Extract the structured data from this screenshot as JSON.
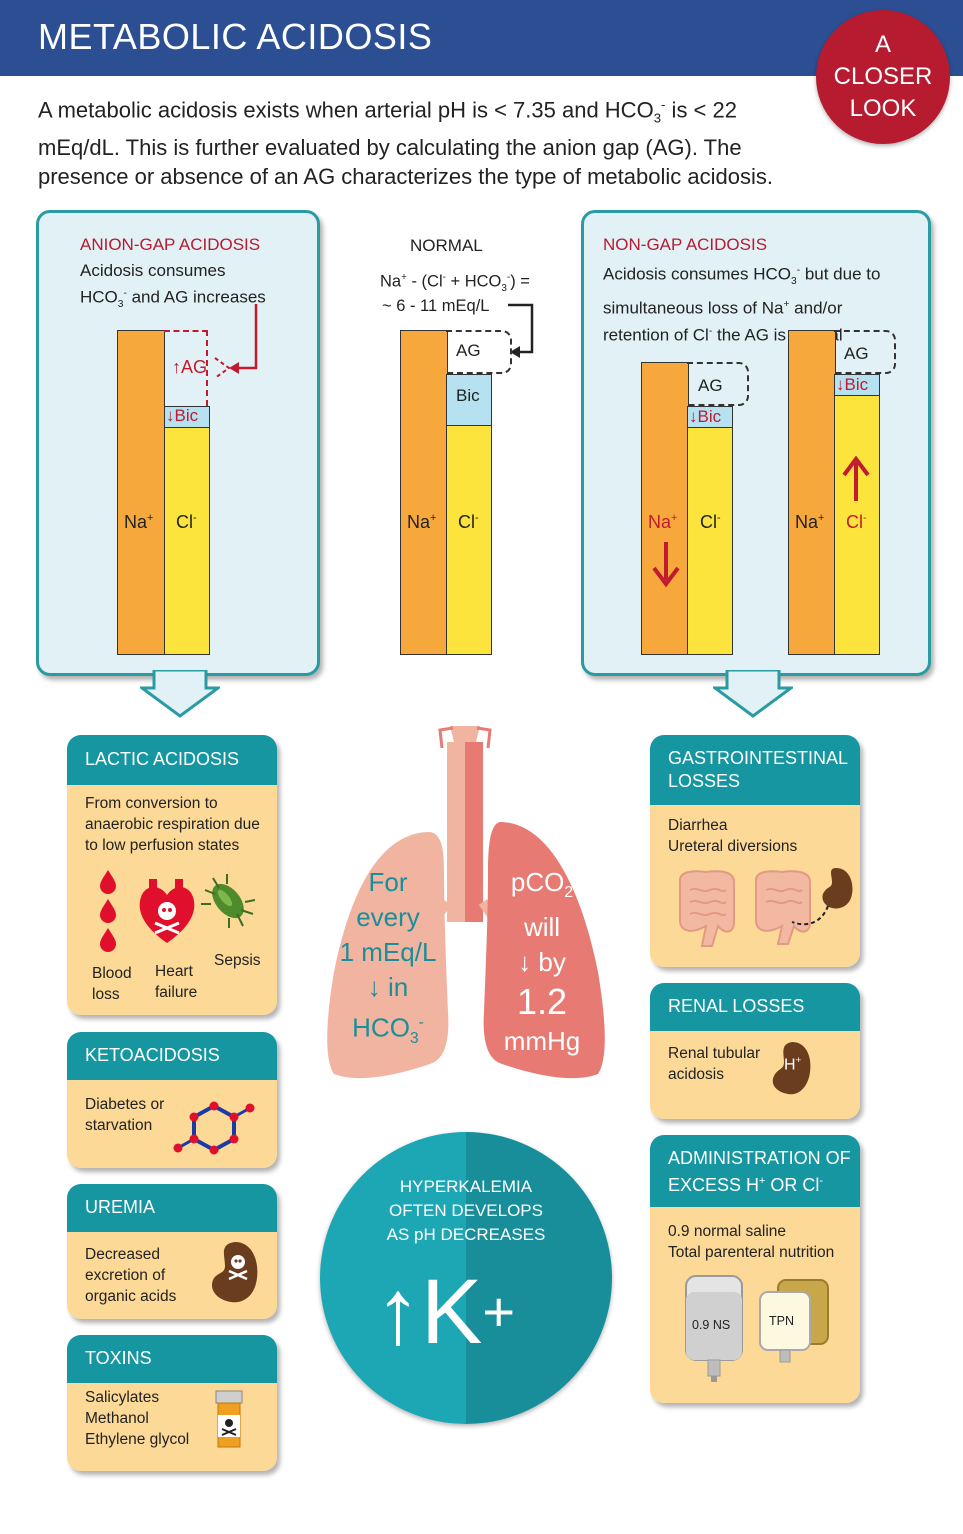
{
  "header": {
    "title": "METABOLIC ACIDOSIS",
    "badge": [
      "A",
      "CLOSER",
      "LOOK"
    ]
  },
  "intro": {
    "part1": "A metabolic acidosis exists when arterial pH is < 7.35 and HCO",
    "sub3": "3",
    "sup_minus": "-",
    "part2": " is < 22 mEq/dL. This is further evaluated by calculating the anion gap (AG). The presence or absence of an AG characterizes the type of metabolic acidosis."
  },
  "anion_gap": {
    "title": "ANION-GAP ACIDOSIS",
    "desc1": "Acidosis consumes",
    "desc2a": "HCO",
    "desc2b": " and AG increases",
    "ag": "↑AG",
    "bic": "↓Bic",
    "na": "Na",
    "cl": "Cl"
  },
  "normal": {
    "title": "NORMAL",
    "formula1a": "Na",
    "formula1b": " - (Cl",
    "formula1c": " + HCO",
    "formula1d": ") =",
    "formula2": "~ 6 - 11 mEq/L",
    "ag": "AG",
    "bic": "Bic",
    "na": "Na",
    "cl": "Cl"
  },
  "non_gap": {
    "title": "NON-GAP ACIDOSIS",
    "desc1a": "Acidosis consumes HCO",
    "desc1b": " but due to",
    "desc2a": "simultaneous loss of Na",
    "desc2b": " and/or",
    "desc3a": "retention of Cl",
    "desc3b": " the AG is normal",
    "ag": "AG",
    "bic": "↓Bic",
    "na": "Na",
    "cl": "Cl"
  },
  "cards_left": {
    "lactic": {
      "title": "LACTIC ACIDOSIS",
      "text": [
        "From conversion to",
        "anaerobic respiration due",
        "to low perfusion states"
      ],
      "blood": [
        "Blood",
        "loss"
      ],
      "heart": [
        "Heart",
        "failure"
      ],
      "sepsis": "Sepsis"
    },
    "keto": {
      "title": "KETOACIDOSIS",
      "text": [
        "Diabetes or",
        "starvation"
      ]
    },
    "uremia": {
      "title": "UREMIA",
      "text": [
        "Decreased",
        "excretion of",
        "organic acids"
      ]
    },
    "toxins": {
      "title": "TOXINS",
      "text": [
        "Salicylates",
        "Methanol",
        "Ethylene glycol"
      ]
    }
  },
  "cards_right": {
    "gi": {
      "title": [
        "GASTROINTESTINAL",
        "LOSSES"
      ],
      "text": [
        "Diarrhea",
        "Ureteral diversions"
      ]
    },
    "renal": {
      "title": "RENAL LOSSES",
      "text": [
        "Renal tubular",
        "acidosis"
      ],
      "hplus": "H"
    },
    "admin": {
      "title1": "ADMINISTRATION OF",
      "title2a": "EXCESS H",
      "title2b": " OR Cl",
      "text": [
        "0.9 normal saline",
        "Total parenteral nutrition"
      ],
      "ns": "0.9 NS",
      "tpn": "TPN"
    }
  },
  "lungs": {
    "left": [
      "For",
      "every",
      "1 mEq/L",
      "↓ in"
    ],
    "left_hco": "HCO",
    "right1": "pCO",
    "right2": "will",
    "right3": "↓ by",
    "right4": "1.2",
    "right5": "mmHg"
  },
  "hyperk": {
    "text": [
      "HYPERKALEMIA",
      "OFTEN DEVELOPS",
      "AS pH DECREASES"
    ],
    "big": "↑K",
    "plus": "+"
  },
  "colors": {
    "header": "#2c4f94",
    "accent_red": "#b61b30",
    "teal": "#1696a0",
    "card_body": "#fcd996",
    "na_bar": "#f7a83c",
    "cl_bar": "#fde43c",
    "bic_bar": "#b5e1f0"
  }
}
